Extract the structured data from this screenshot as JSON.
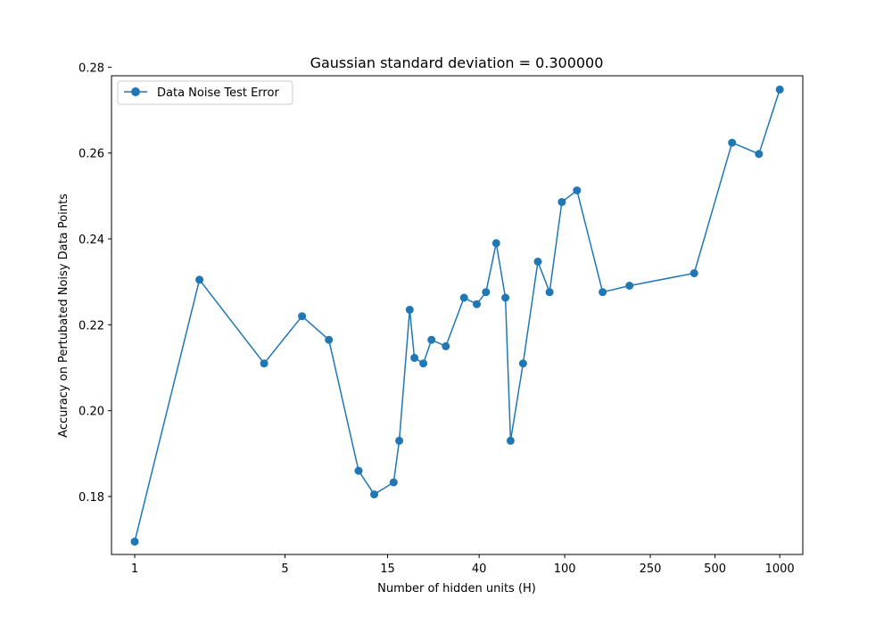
{
  "chart_data": {
    "type": "line",
    "title": "Gaussian standard deviation = 0.300000",
    "xlabel": "Number of hidden units (H)",
    "ylabel": "Accuracy on Pertubated Noisy Data Points",
    "x_scale": "log",
    "xlim": [
      0.78,
      1280
    ],
    "ylim": [
      0.1665,
      0.278
    ],
    "x_ticks": [
      1,
      5,
      15,
      40,
      100,
      250,
      500,
      1000
    ],
    "y_ticks": [
      0.18,
      0.2,
      0.22,
      0.24,
      0.26,
      0.28
    ],
    "y_tick_labels": [
      "0.18",
      "0.20",
      "0.22",
      "0.24",
      "0.26",
      "0.28"
    ],
    "grid": false,
    "legend_position": "upper-left",
    "series": [
      {
        "name": "Data Noise Test Error",
        "color": "#1f77b4",
        "marker": "circle",
        "x": [
          1,
          2,
          4,
          6,
          8,
          11,
          13,
          16,
          17,
          19,
          20,
          22,
          24,
          28,
          34,
          39,
          43,
          48,
          53,
          56,
          64,
          75,
          85,
          97,
          114,
          150,
          200,
          400,
          600,
          800,
          1000
        ],
        "y": [
          0.1695,
          0.2305,
          0.211,
          0.222,
          0.2165,
          0.186,
          0.1805,
          0.1833,
          0.193,
          0.2235,
          0.2123,
          0.211,
          0.2165,
          0.215,
          0.2263,
          0.2248,
          0.2276,
          0.239,
          0.2263,
          0.193,
          0.211,
          0.2347,
          0.2276,
          0.2486,
          0.2513,
          0.2276,
          0.2291,
          0.232,
          0.2624,
          0.2598,
          0.2748
        ]
      }
    ]
  }
}
